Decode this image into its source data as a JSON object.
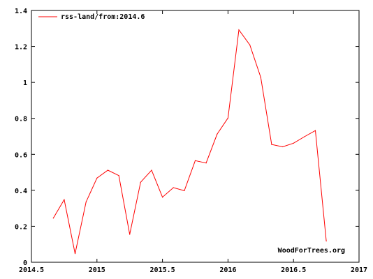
{
  "chart_data": {
    "type": "line",
    "title": "",
    "xlabel": "",
    "ylabel": "",
    "xlim": [
      2014.5,
      2017
    ],
    "ylim": [
      0,
      1.4
    ],
    "x_ticks": [
      2014.5,
      2015,
      2015.5,
      2016,
      2016.5,
      2017
    ],
    "x_tick_labels": [
      "2014.5",
      "2015",
      "2015.5",
      "2016",
      "2016.5",
      "2017"
    ],
    "y_ticks": [
      0,
      0.2,
      0.4,
      0.6,
      0.8,
      1,
      1.2,
      1.4
    ],
    "y_tick_labels": [
      "0",
      "0.2",
      "0.4",
      "0.6",
      "0.8",
      "1",
      "1.2",
      "1.4"
    ],
    "grid": false,
    "legend_position": "top-left",
    "watermark": "WoodForTrees.org",
    "series": [
      {
        "name": "rss-land/from:2014.6",
        "color": "#ff0000",
        "x": [
          2014.667,
          2014.75,
          2014.833,
          2014.917,
          2015.0,
          2015.083,
          2015.167,
          2015.25,
          2015.333,
          2015.417,
          2015.5,
          2015.583,
          2015.667,
          2015.75,
          2015.833,
          2015.917,
          2016.0,
          2016.083,
          2016.167,
          2016.25,
          2016.333,
          2016.417,
          2016.5,
          2016.583,
          2016.667,
          2016.75
        ],
        "values": [
          0.245,
          0.348,
          0.048,
          0.335,
          0.468,
          0.512,
          0.482,
          0.155,
          0.445,
          0.512,
          0.362,
          0.415,
          0.398,
          0.565,
          0.552,
          0.712,
          0.802,
          1.292,
          1.208,
          1.028,
          0.655,
          0.642,
          0.662,
          0.698,
          0.732,
          0.118
        ]
      }
    ]
  }
}
